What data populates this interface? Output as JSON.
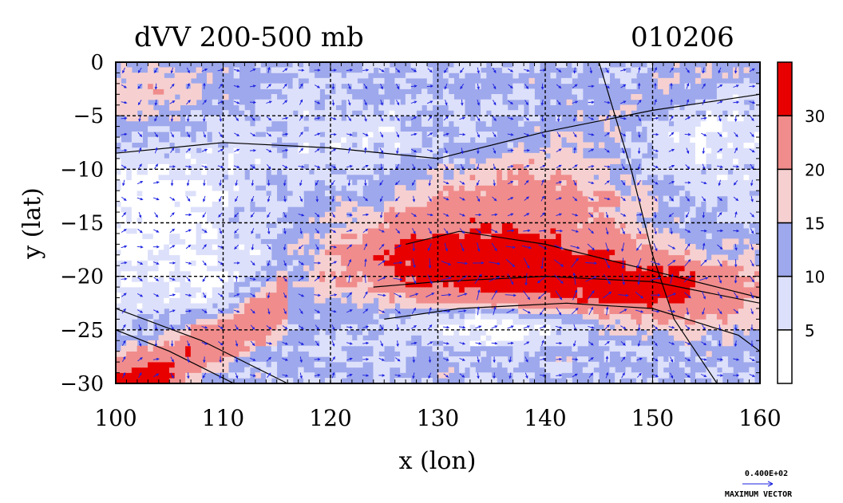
{
  "chart_data": {
    "type": "heatmap",
    "title": "dVV 200-500 mb",
    "date_label": "010206",
    "xlabel": "x (lon)",
    "ylabel": "y (lat)",
    "xlim": [
      100,
      160
    ],
    "ylim": [
      -30,
      0
    ],
    "x_ticks": [
      100,
      110,
      120,
      130,
      140,
      150,
      160
    ],
    "x_tick_labels": [
      "100",
      "110",
      "120",
      "130",
      "140",
      "150",
      "160"
    ],
    "y_ticks": [
      0,
      -5,
      -10,
      -15,
      -20,
      -25,
      -30
    ],
    "y_tick_labels": [
      "0",
      "−5",
      "−10",
      "−15",
      "−20",
      "−25",
      "−30"
    ],
    "grid": true,
    "colorbar": {
      "levels": [
        0,
        5,
        10,
        15,
        20,
        30,
        35
      ],
      "labels": [
        "5",
        "10",
        "15",
        "20",
        "30"
      ],
      "colors": [
        "#ffffff",
        "#dde0fa",
        "#9ea8ec",
        "#f6d0d0",
        "#f08c8c",
        "#e80000"
      ]
    },
    "vector_legend": {
      "value_label": "0.400E+02",
      "caption": "MAXIMUM VECTOR"
    },
    "vector_color": "#1a20e0"
  }
}
